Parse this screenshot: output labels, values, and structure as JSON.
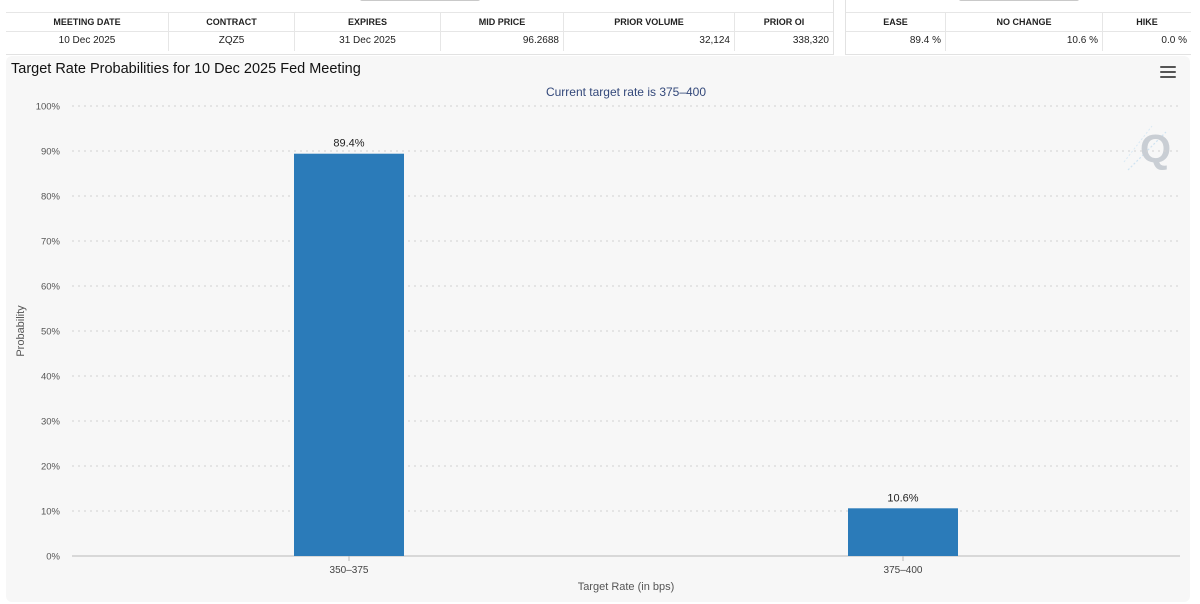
{
  "meeting_table": {
    "columns": [
      "MEETING DATE",
      "CONTRACT",
      "EXPIRES",
      "MID PRICE",
      "PRIOR VOLUME",
      "PRIOR OI"
    ],
    "row": [
      "10 Dec 2025",
      "ZQZ5",
      "31 Dec 2025",
      "96.2688",
      "32,124",
      "338,320"
    ]
  },
  "probabilities_table": {
    "columns": [
      "EASE",
      "NO CHANGE",
      "HIKE"
    ],
    "row": [
      "89.4 %",
      "10.6 %",
      "0.0 %"
    ]
  },
  "chart_title": "Target Rate Probabilities for 10 Dec 2025 Fed Meeting",
  "colors": {
    "bar": "#2b7bb9",
    "subtitle": "#33487a",
    "grid": "#d2d2d2",
    "panel": "#f7f7f7"
  },
  "chart_data": {
    "type": "bar",
    "subtitle": "Current target rate is 375–400",
    "categories": [
      "350–375",
      "375–400"
    ],
    "values": [
      89.4,
      10.6
    ],
    "data_labels": [
      "89.4%",
      "10.6%"
    ],
    "xlabel": "Target Rate (in bps)",
    "ylabel": "Probability",
    "ylim": [
      0,
      100
    ],
    "yticks": [
      "0%",
      "10%",
      "20%",
      "30%",
      "40%",
      "50%",
      "60%",
      "70%",
      "80%",
      "90%",
      "100%"
    ],
    "grid": true,
    "legend": "none"
  }
}
